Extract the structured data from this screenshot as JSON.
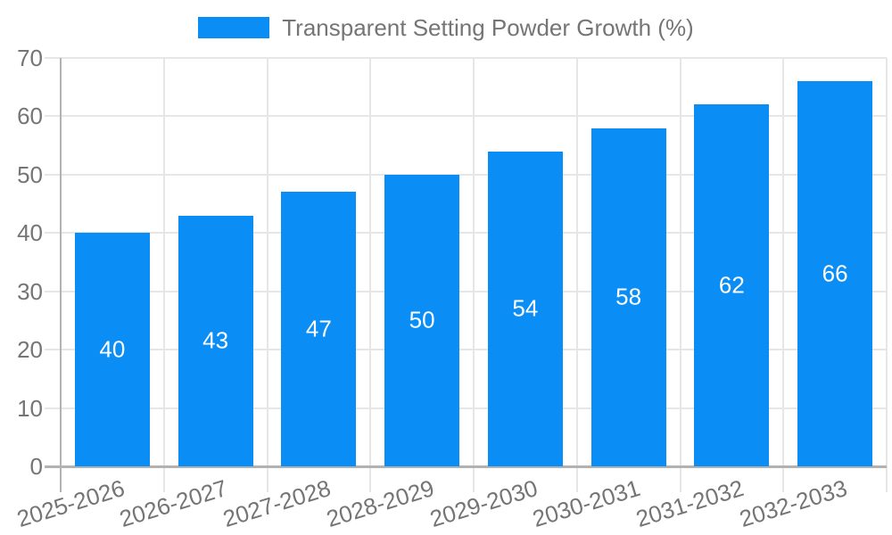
{
  "chart_data": {
    "type": "bar",
    "title": "",
    "series_name": "Transparent Setting Powder Growth (%)",
    "categories": [
      "2025-2026",
      "2026-2027",
      "2027-2028",
      "2028-2029",
      "2029-2030",
      "2030-2031",
      "2031-2032",
      "2032-2033"
    ],
    "values": [
      40,
      43,
      47,
      50,
      54,
      58,
      62,
      66
    ],
    "xlabel": "",
    "ylabel": "",
    "ylim": [
      0,
      70
    ],
    "ytick_step": 10,
    "yticks": [
      0,
      10,
      20,
      30,
      40,
      50,
      60,
      70
    ],
    "grid": true,
    "legend_position": "top",
    "value_labels_position": "inside-middle",
    "x_label_rotation_deg": -17
  },
  "colors": {
    "bar": "#0a8df5",
    "grid_line": "#e6e6e6",
    "axis_line": "#b2b2b2",
    "axis_text": "#757575",
    "value_label_text": "#ffffff",
    "background": "#ffffff"
  }
}
